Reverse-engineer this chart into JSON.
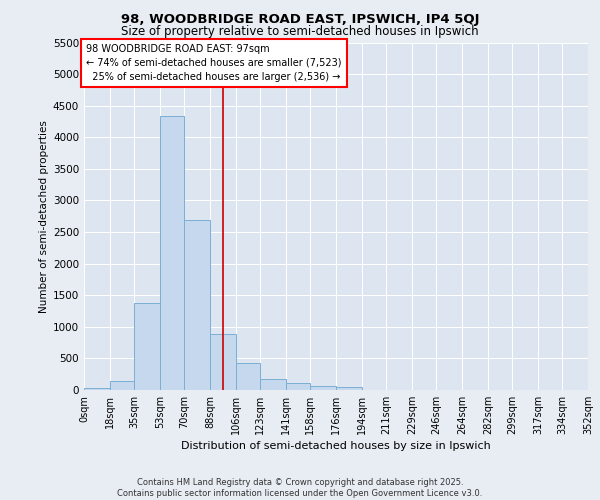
{
  "title1": "98, WOODBRIDGE ROAD EAST, IPSWICH, IP4 5QJ",
  "title2": "Size of property relative to semi-detached houses in Ipswich",
  "xlabel": "Distribution of semi-detached houses by size in Ipswich",
  "ylabel": "Number of semi-detached properties",
  "bar_color": "#c5d8ee",
  "bar_edge_color": "#7bafd4",
  "vline_color": "#cc0000",
  "background_color": "#e8edf4",
  "plot_bg_color": "#dce5f0",
  "grid_color": "#ffffff",
  "footer_text": "Contains HM Land Registry data © Crown copyright and database right 2025.\nContains public sector information licensed under the Open Government Licence v3.0.",
  "property_size": 97,
  "property_label": "98 WOODBRIDGE ROAD EAST: 97sqm",
  "smaller_pct": 74,
  "smaller_count": 7523,
  "larger_pct": 25,
  "larger_count": 2536,
  "bin_edges": [
    0,
    18,
    35,
    53,
    70,
    88,
    106,
    123,
    141,
    158,
    176,
    194,
    211,
    229,
    246,
    264,
    282,
    299,
    317,
    334,
    352
  ],
  "bin_labels": [
    "0sqm",
    "18sqm",
    "35sqm",
    "53sqm",
    "70sqm",
    "88sqm",
    "106sqm",
    "123sqm",
    "141sqm",
    "158sqm",
    "176sqm",
    "194sqm",
    "211sqm",
    "229sqm",
    "246sqm",
    "264sqm",
    "282sqm",
    "299sqm",
    "317sqm",
    "334sqm",
    "352sqm"
  ],
  "counts": [
    30,
    150,
    1380,
    4330,
    2690,
    880,
    420,
    170,
    110,
    70,
    50,
    0,
    0,
    0,
    0,
    0,
    0,
    0,
    0,
    0
  ],
  "ylim": [
    0,
    5500
  ],
  "yticks": [
    0,
    500,
    1000,
    1500,
    2000,
    2500,
    3000,
    3500,
    4000,
    4500,
    5000,
    5500
  ]
}
